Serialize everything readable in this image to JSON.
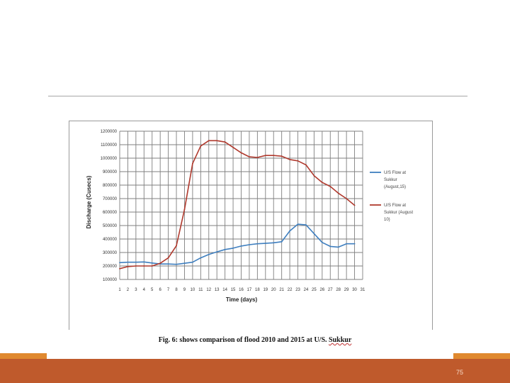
{
  "slide": {
    "page_number": "75",
    "caption_main": "Fig. 6: shows comparison of flood 2010 and 2015 at U/S.",
    "caption_tail": "Sukkur",
    "colors": {
      "footer": "#bf5a2c",
      "accent": "#e0892f",
      "series1": "#3f7fbf",
      "series2": "#b03a2e",
      "grid": "#7f7f7f"
    }
  },
  "chart_data": {
    "type": "line",
    "title": "",
    "xlabel": "Time (days)",
    "ylabel": "Discharge (Cusecs)",
    "ylim": [
      100000,
      1200000
    ],
    "yticks": [
      "1200000",
      "1100000",
      "1000000",
      "900000",
      "800000",
      "700000",
      "600000",
      "500000",
      "400000",
      "300000",
      "200000",
      "100000"
    ],
    "x": [
      1,
      2,
      3,
      4,
      5,
      6,
      7,
      8,
      9,
      10,
      11,
      12,
      13,
      14,
      15,
      16,
      17,
      18,
      19,
      20,
      21,
      22,
      23,
      24,
      25,
      26,
      27,
      28,
      29,
      30,
      31
    ],
    "legend_position": "right",
    "series": [
      {
        "name": "U/S Flow at Sukkur (August, 15)",
        "legend_lines": [
          "U/S Flow at",
          "Sukkur",
          "(August,15)"
        ],
        "color": "#3f7fbf",
        "x": [
          1,
          2,
          3,
          4,
          5,
          6,
          7,
          8,
          9,
          10,
          11,
          12,
          13,
          14,
          15,
          16,
          17,
          18,
          19,
          20,
          21,
          22,
          23,
          24,
          25,
          26,
          27,
          28,
          29,
          30
        ],
        "values": [
          225000,
          228000,
          228000,
          230000,
          222000,
          215000,
          215000,
          212000,
          220000,
          228000,
          260000,
          285000,
          305000,
          322000,
          332000,
          348000,
          358000,
          365000,
          368000,
          372000,
          380000,
          460000,
          510000,
          505000,
          440000,
          375000,
          345000,
          340000,
          365000,
          365000
        ]
      },
      {
        "name": "U/S Flow at Sukkur (August 10)",
        "legend_lines": [
          "U/S Flow at",
          "Sukkur (August",
          "10)"
        ],
        "color": "#b03a2e",
        "x": [
          1,
          2,
          3,
          4,
          5,
          6,
          7,
          8,
          9,
          10,
          11,
          12,
          13,
          14,
          15,
          16,
          17,
          18,
          19,
          20,
          21,
          22,
          23,
          24,
          25,
          26,
          27,
          28,
          29,
          30
        ],
        "values": [
          180000,
          195000,
          200000,
          200000,
          200000,
          220000,
          260000,
          350000,
          620000,
          960000,
          1090000,
          1130000,
          1130000,
          1120000,
          1080000,
          1040000,
          1010000,
          1005000,
          1020000,
          1020000,
          1015000,
          990000,
          980000,
          950000,
          870000,
          820000,
          790000,
          740000,
          700000,
          650000
        ]
      }
    ]
  }
}
